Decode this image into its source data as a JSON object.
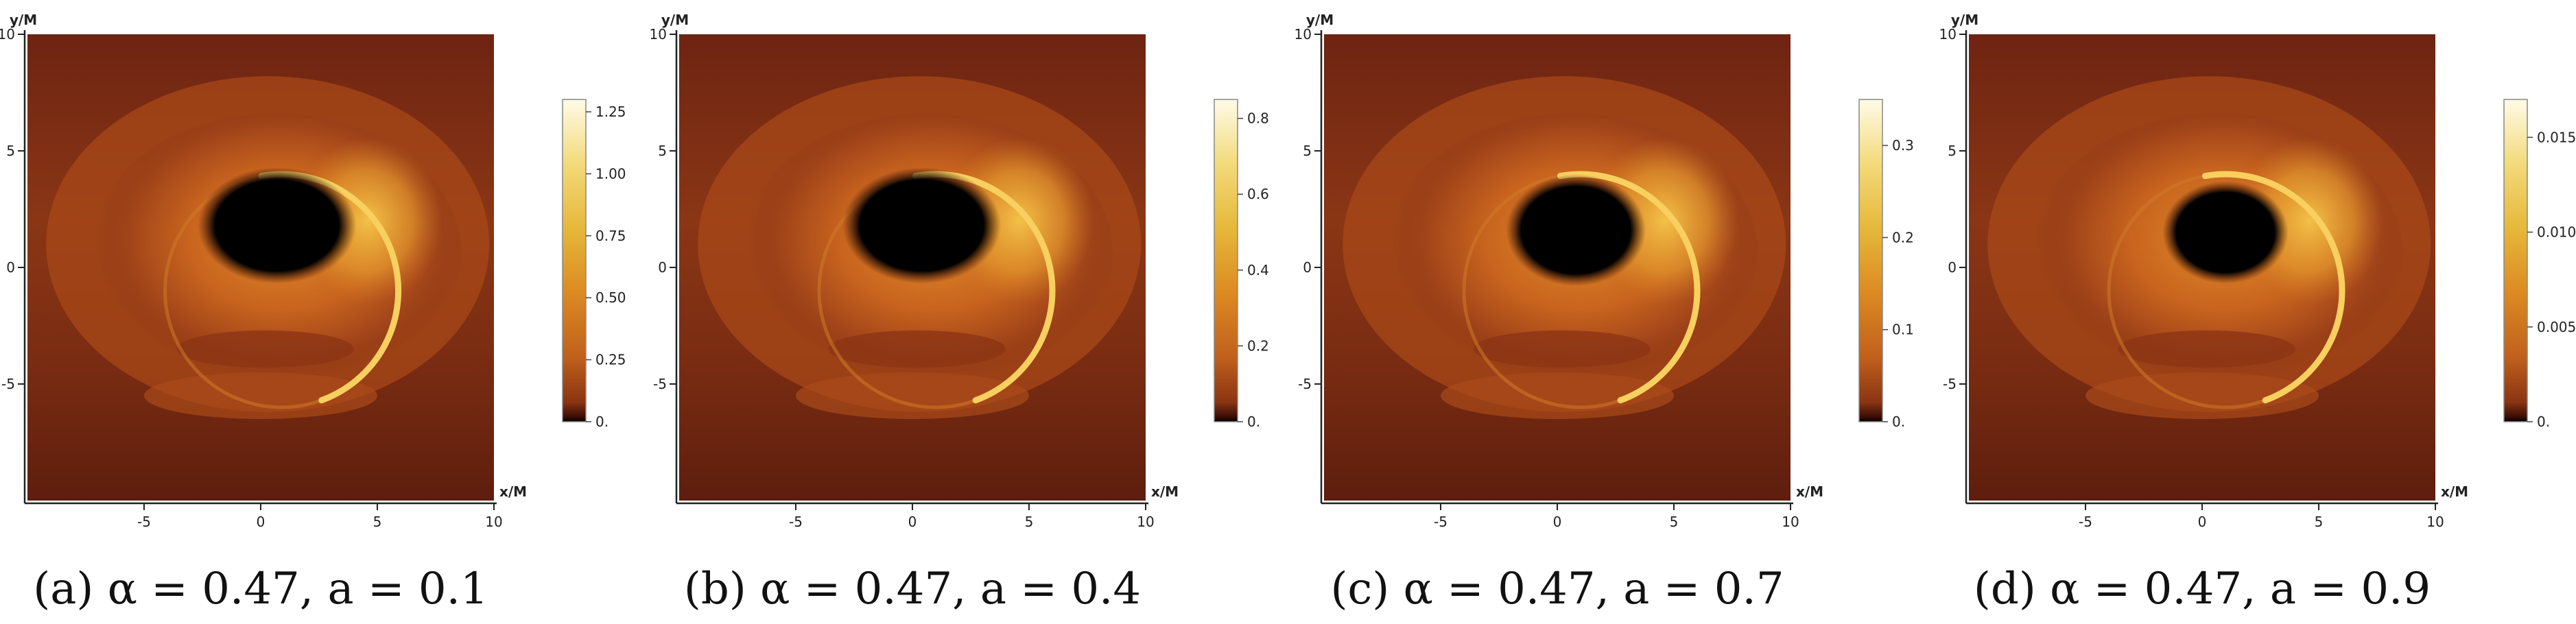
{
  "chart_data": [
    {
      "type": "heatmap",
      "caption": "(a) α = 0.47, a = 0.1",
      "xlabel": "x/M",
      "ylabel": "y/M",
      "xlim": [
        -10,
        10
      ],
      "ylim": [
        -10,
        10
      ],
      "xticks": [
        "-5",
        "0",
        "5",
        "10"
      ],
      "yticks": [
        "10",
        "5",
        "0",
        "-5"
      ],
      "colorbar": {
        "min": 0,
        "max": 1.3,
        "ticks": [
          "0.",
          "0.25",
          "0.50",
          "0.75",
          "1.00",
          "1.25"
        ],
        "tick_values": [
          0,
          0.25,
          0.5,
          0.75,
          1.0,
          1.25
        ]
      },
      "shadow": {
        "cx": 0.7,
        "cy": 1.8,
        "rx": 3.4,
        "ry": 2.5
      },
      "ring": {
        "cx": 0.9,
        "cy": -1.0,
        "r": 5.0
      }
    },
    {
      "type": "heatmap",
      "caption": "(b) α = 0.47, a = 0.4",
      "xlabel": "x/M",
      "ylabel": "y/M",
      "xlim": [
        -10,
        10
      ],
      "ylim": [
        -10,
        10
      ],
      "xticks": [
        "-5",
        "0",
        "5",
        "10"
      ],
      "yticks": [
        "10",
        "5",
        "0",
        "-5"
      ],
      "colorbar": {
        "min": 0,
        "max": 0.85,
        "ticks": [
          "0.",
          "0.2",
          "0.4",
          "0.6",
          "0.8"
        ],
        "tick_values": [
          0,
          0.2,
          0.4,
          0.6,
          0.8
        ]
      },
      "shadow": {
        "cx": 0.4,
        "cy": 1.8,
        "rx": 3.4,
        "ry": 2.5
      },
      "ring": {
        "cx": 1.0,
        "cy": -1.0,
        "r": 5.0
      }
    },
    {
      "type": "heatmap",
      "caption": "(c) α = 0.47, a = 0.7",
      "xlabel": "x/M",
      "ylabel": "y/M",
      "xlim": [
        -10,
        10
      ],
      "ylim": [
        -10,
        10
      ],
      "xticks": [
        "-5",
        "0",
        "5",
        "10"
      ],
      "yticks": [
        "10",
        "5",
        "0",
        "-5"
      ],
      "colorbar": {
        "min": 0,
        "max": 0.35,
        "ticks": [
          "0.",
          "0.1",
          "0.2",
          "0.3"
        ],
        "tick_values": [
          0,
          0.1,
          0.2,
          0.3
        ]
      },
      "shadow": {
        "cx": 0.8,
        "cy": 1.6,
        "rx": 3.0,
        "ry": 2.4
      },
      "ring": {
        "cx": 1.0,
        "cy": -1.0,
        "r": 5.0
      }
    },
    {
      "type": "heatmap",
      "caption": "(d) α = 0.47, a = 0.9",
      "xlabel": "x/M",
      "ylabel": "y/M",
      "xlim": [
        -10,
        10
      ],
      "ylim": [
        -10,
        10
      ],
      "xticks": [
        "-5",
        "0",
        "5",
        "10"
      ],
      "yticks": [
        "10",
        "5",
        "0",
        "-5"
      ],
      "colorbar": {
        "min": 0,
        "max": 0.017,
        "ticks": [
          "0.",
          "0.005",
          "0.010",
          "0.015"
        ],
        "tick_values": [
          0,
          0.005,
          0.01,
          0.015
        ]
      },
      "shadow": {
        "cx": 1.0,
        "cy": 1.5,
        "rx": 2.7,
        "ry": 2.2
      },
      "ring": {
        "cx": 1.0,
        "cy": -1.0,
        "r": 5.0
      }
    }
  ]
}
